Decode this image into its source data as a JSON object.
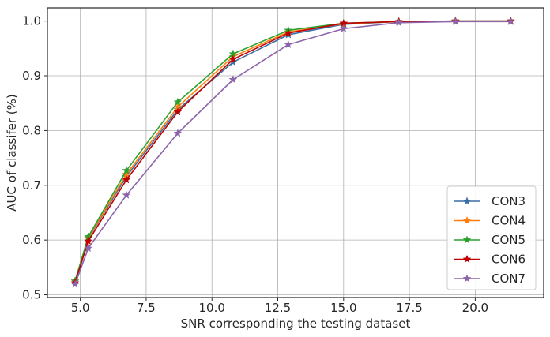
{
  "chart_data": {
    "type": "line",
    "title": "",
    "xlabel": "SNR corresponding the testing dataset",
    "ylabel": "AUC of classifer (%)",
    "xlim": [
      3.75,
      22.6
    ],
    "ylim": [
      0.495,
      1.024
    ],
    "xticks": [
      5.0,
      7.5,
      10.0,
      12.5,
      15.0,
      17.5,
      20.0
    ],
    "xtick_labels": [
      "5.0",
      "7.5",
      "10.0",
      "12.5",
      "15.0",
      "17.5",
      "20.0"
    ],
    "yticks": [
      0.5,
      0.6,
      0.7,
      0.8,
      0.9,
      1.0
    ],
    "ytick_labels": [
      "0.5",
      "0.6",
      "0.7",
      "0.8",
      "0.9",
      "1.0"
    ],
    "grid": true,
    "legend_position": "bottom-right",
    "marker": "star",
    "x": [
      4.8,
      5.3,
      6.75,
      8.7,
      10.8,
      12.9,
      15.0,
      17.1,
      19.25,
      21.35
    ],
    "series": [
      {
        "name": "CON3",
        "color": "#3a6ea5",
        "values": [
          0.525,
          0.603,
          0.716,
          0.838,
          0.925,
          0.975,
          0.994,
          0.999,
          1.0,
          1.0
        ]
      },
      {
        "name": "CON4",
        "color": "#ff7f0e",
        "values": [
          0.525,
          0.604,
          0.72,
          0.843,
          0.935,
          0.98,
          0.995,
          0.999,
          1.0,
          1.0
        ]
      },
      {
        "name": "CON5",
        "color": "#2ca02c",
        "values": [
          0.525,
          0.606,
          0.727,
          0.852,
          0.94,
          0.983,
          0.996,
          0.999,
          1.0,
          1.0
        ]
      },
      {
        "name": "CON6",
        "color": "#c00000",
        "values": [
          0.522,
          0.598,
          0.71,
          0.834,
          0.93,
          0.978,
          0.996,
          0.999,
          1.0,
          1.0
        ]
      },
      {
        "name": "CON7",
        "color": "#8c64aa",
        "values": [
          0.519,
          0.585,
          0.682,
          0.795,
          0.893,
          0.957,
          0.986,
          0.997,
          0.999,
          0.999
        ]
      }
    ]
  }
}
